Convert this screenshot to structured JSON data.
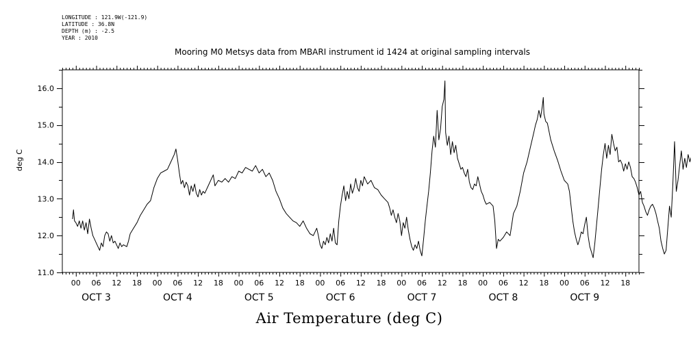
{
  "meta": {
    "longitude": "LONGITUDE : 121.9W(-121.9)",
    "latitude": "LATITUDE : 36.8N",
    "depth": "DEPTH (m) : -2.5",
    "year": "YEAR : 2010"
  },
  "chart_data": {
    "type": "line",
    "title": "Mooring M0 Metsys data from MBARI instrument id 1424 at original sampling intervals",
    "xlabel": "Air Temperature (deg C)",
    "ylabel": "deg C",
    "ylim": [
      11.0,
      16.5
    ],
    "yticks": [
      "11.0",
      "12.0",
      "13.0",
      "14.0",
      "15.0",
      "16.0"
    ],
    "xlim_hours": [
      -4,
      166
    ],
    "hour_tick_labels": [
      "00",
      "06",
      "12",
      "18",
      "00",
      "06",
      "12",
      "18",
      "00",
      "06",
      "12",
      "18",
      "00",
      "06",
      "12",
      "18",
      "00",
      "06",
      "12",
      "18",
      "00",
      "06",
      "12",
      "18",
      "00",
      "06",
      "12",
      "18"
    ],
    "day_labels": [
      "OCT 3",
      "OCT 4",
      "OCT 5",
      "OCT 6",
      "OCT 7",
      "OCT 8",
      "OCT 9"
    ],
    "grid": false,
    "series": [
      {
        "color": "#000000",
        "points": [
          [
            -1.0,
            12.45
          ],
          [
            -0.7,
            12.7
          ],
          [
            -0.4,
            12.4
          ],
          [
            0.0,
            12.35
          ],
          [
            0.5,
            12.25
          ],
          [
            1.0,
            12.4
          ],
          [
            1.5,
            12.2
          ],
          [
            2.0,
            12.4
          ],
          [
            2.5,
            12.15
          ],
          [
            3.0,
            12.35
          ],
          [
            3.5,
            12.05
          ],
          [
            4.0,
            12.45
          ],
          [
            4.5,
            12.2
          ],
          [
            5.0,
            12.0
          ],
          [
            5.5,
            11.9
          ],
          [
            6.0,
            11.8
          ],
          [
            6.5,
            11.7
          ],
          [
            7.0,
            11.6
          ],
          [
            7.5,
            11.8
          ],
          [
            8.0,
            11.7
          ],
          [
            8.5,
            12.0
          ],
          [
            9.0,
            12.1
          ],
          [
            9.5,
            12.05
          ],
          [
            10.0,
            11.85
          ],
          [
            10.5,
            12.0
          ],
          [
            11.0,
            11.8
          ],
          [
            11.5,
            11.85
          ],
          [
            12.0,
            11.75
          ],
          [
            12.5,
            11.65
          ],
          [
            13.0,
            11.8
          ],
          [
            13.5,
            11.7
          ],
          [
            14.0,
            11.75
          ],
          [
            15.0,
            11.7
          ],
          [
            15.5,
            11.85
          ],
          [
            16.0,
            12.05
          ],
          [
            17.0,
            12.2
          ],
          [
            18.0,
            12.35
          ],
          [
            19.0,
            12.55
          ],
          [
            20.0,
            12.7
          ],
          [
            21.0,
            12.85
          ],
          [
            22.0,
            12.95
          ],
          [
            23.0,
            13.3
          ],
          [
            24.0,
            13.55
          ],
          [
            25.0,
            13.7
          ],
          [
            26.0,
            13.75
          ],
          [
            27.0,
            13.8
          ],
          [
            28.0,
            14.0
          ],
          [
            29.0,
            14.2
          ],
          [
            29.5,
            14.35
          ],
          [
            30.0,
            14.05
          ],
          [
            30.5,
            13.7
          ],
          [
            31.0,
            13.4
          ],
          [
            31.5,
            13.5
          ],
          [
            32.0,
            13.3
          ],
          [
            32.5,
            13.45
          ],
          [
            33.0,
            13.35
          ],
          [
            33.5,
            13.1
          ],
          [
            34.0,
            13.35
          ],
          [
            34.5,
            13.2
          ],
          [
            35.0,
            13.4
          ],
          [
            35.5,
            13.15
          ],
          [
            36.0,
            13.05
          ],
          [
            36.5,
            13.25
          ],
          [
            37.0,
            13.1
          ],
          [
            37.5,
            13.2
          ],
          [
            38.0,
            13.15
          ],
          [
            39.0,
            13.35
          ],
          [
            40.0,
            13.55
          ],
          [
            40.5,
            13.65
          ],
          [
            41.0,
            13.35
          ],
          [
            42.0,
            13.5
          ],
          [
            43.0,
            13.45
          ],
          [
            44.0,
            13.55
          ],
          [
            45.0,
            13.45
          ],
          [
            46.0,
            13.6
          ],
          [
            47.0,
            13.55
          ],
          [
            48.0,
            13.75
          ],
          [
            49.0,
            13.7
          ],
          [
            50.0,
            13.85
          ],
          [
            51.0,
            13.8
          ],
          [
            52.0,
            13.75
          ],
          [
            53.0,
            13.9
          ],
          [
            54.0,
            13.7
          ],
          [
            55.0,
            13.8
          ],
          [
            56.0,
            13.6
          ],
          [
            57.0,
            13.7
          ],
          [
            58.0,
            13.5
          ],
          [
            59.0,
            13.2
          ],
          [
            60.0,
            13.0
          ],
          [
            61.0,
            12.75
          ],
          [
            62.0,
            12.6
          ],
          [
            63.0,
            12.5
          ],
          [
            64.0,
            12.4
          ],
          [
            65.0,
            12.35
          ],
          [
            66.0,
            12.25
          ],
          [
            67.0,
            12.4
          ],
          [
            68.0,
            12.2
          ],
          [
            69.0,
            12.05
          ],
          [
            70.0,
            12.0
          ],
          [
            71.0,
            12.2
          ],
          [
            71.5,
            12.0
          ],
          [
            72.0,
            11.75
          ],
          [
            72.5,
            11.65
          ],
          [
            73.0,
            11.85
          ],
          [
            73.5,
            11.75
          ],
          [
            74.0,
            11.95
          ],
          [
            74.5,
            11.8
          ],
          [
            75.0,
            12.05
          ],
          [
            75.5,
            11.85
          ],
          [
            76.0,
            12.2
          ],
          [
            76.5,
            11.8
          ],
          [
            77.0,
            11.75
          ],
          [
            77.5,
            12.4
          ],
          [
            78.0,
            12.8
          ],
          [
            78.5,
            13.1
          ],
          [
            79.0,
            13.35
          ],
          [
            79.5,
            12.95
          ],
          [
            80.0,
            13.2
          ],
          [
            80.5,
            13.0
          ],
          [
            81.0,
            13.4
          ],
          [
            81.5,
            13.15
          ],
          [
            82.0,
            13.3
          ],
          [
            82.5,
            13.55
          ],
          [
            83.0,
            13.3
          ],
          [
            83.5,
            13.2
          ],
          [
            84.0,
            13.5
          ],
          [
            84.5,
            13.35
          ],
          [
            85.0,
            13.6
          ],
          [
            86.0,
            13.4
          ],
          [
            87.0,
            13.5
          ],
          [
            88.0,
            13.3
          ],
          [
            89.0,
            13.25
          ],
          [
            90.0,
            13.1
          ],
          [
            91.0,
            13.0
          ],
          [
            92.0,
            12.9
          ],
          [
            92.5,
            12.75
          ],
          [
            93.0,
            12.55
          ],
          [
            93.5,
            12.7
          ],
          [
            94.0,
            12.5
          ],
          [
            94.5,
            12.35
          ],
          [
            95.0,
            12.6
          ],
          [
            95.5,
            12.4
          ],
          [
            96.0,
            12.0
          ],
          [
            96.5,
            12.35
          ],
          [
            97.0,
            12.2
          ],
          [
            97.5,
            12.5
          ],
          [
            98.0,
            12.15
          ],
          [
            98.5,
            11.9
          ],
          [
            99.0,
            11.7
          ],
          [
            99.5,
            11.6
          ],
          [
            100.0,
            11.75
          ],
          [
            100.5,
            11.65
          ],
          [
            101.0,
            11.85
          ],
          [
            101.5,
            11.6
          ],
          [
            102.0,
            11.45
          ],
          [
            102.5,
            11.9
          ],
          [
            103.0,
            12.4
          ],
          [
            103.5,
            12.8
          ],
          [
            104.0,
            13.2
          ],
          [
            104.5,
            13.7
          ],
          [
            105.0,
            14.3
          ],
          [
            105.5,
            14.7
          ],
          [
            106.0,
            14.4
          ],
          [
            106.5,
            15.4
          ],
          [
            107.0,
            14.6
          ],
          [
            107.5,
            14.9
          ],
          [
            108.0,
            15.5
          ],
          [
            108.5,
            15.7
          ],
          [
            108.8,
            16.2
          ],
          [
            109.0,
            14.8
          ],
          [
            109.5,
            14.45
          ],
          [
            110.0,
            14.7
          ],
          [
            110.5,
            14.2
          ],
          [
            111.0,
            14.55
          ],
          [
            111.5,
            14.25
          ],
          [
            112.0,
            14.45
          ],
          [
            112.5,
            14.1
          ],
          [
            113.0,
            13.95
          ],
          [
            113.5,
            13.8
          ],
          [
            114.0,
            13.85
          ],
          [
            114.5,
            13.7
          ],
          [
            115.0,
            13.6
          ],
          [
            115.5,
            13.8
          ],
          [
            116.0,
            13.45
          ],
          [
            116.5,
            13.3
          ],
          [
            117.0,
            13.25
          ],
          [
            117.5,
            13.4
          ],
          [
            118.0,
            13.35
          ],
          [
            118.5,
            13.6
          ],
          [
            119.0,
            13.4
          ],
          [
            119.5,
            13.2
          ],
          [
            120.0,
            13.1
          ],
          [
            120.5,
            12.95
          ],
          [
            121.0,
            12.85
          ],
          [
            122.0,
            12.9
          ],
          [
            123.0,
            12.8
          ],
          [
            123.5,
            12.4
          ],
          [
            124.0,
            11.65
          ],
          [
            124.5,
            11.9
          ],
          [
            125.0,
            11.85
          ],
          [
            126.0,
            11.95
          ],
          [
            127.0,
            12.1
          ],
          [
            128.0,
            12.0
          ],
          [
            128.5,
            12.3
          ],
          [
            129.0,
            12.6
          ],
          [
            130.0,
            12.8
          ],
          [
            131.0,
            13.2
          ],
          [
            132.0,
            13.7
          ],
          [
            133.0,
            14.0
          ],
          [
            134.0,
            14.4
          ],
          [
            135.0,
            14.8
          ],
          [
            135.5,
            15.0
          ],
          [
            136.0,
            15.15
          ],
          [
            136.5,
            15.4
          ],
          [
            137.0,
            15.2
          ],
          [
            137.5,
            15.5
          ],
          [
            137.8,
            15.75
          ],
          [
            138.0,
            15.3
          ],
          [
            138.5,
            15.1
          ],
          [
            139.0,
            15.05
          ],
          [
            140.0,
            14.6
          ],
          [
            141.0,
            14.3
          ],
          [
            142.0,
            14.05
          ],
          [
            143.0,
            13.75
          ],
          [
            144.0,
            13.5
          ],
          [
            145.0,
            13.4
          ],
          [
            145.5,
            13.2
          ],
          [
            146.0,
            12.8
          ],
          [
            146.5,
            12.4
          ],
          [
            147.0,
            12.1
          ],
          [
            147.5,
            11.9
          ],
          [
            148.0,
            11.75
          ],
          [
            148.5,
            11.9
          ],
          [
            149.0,
            12.1
          ],
          [
            149.5,
            12.05
          ],
          [
            150.0,
            12.3
          ],
          [
            150.5,
            12.5
          ],
          [
            151.0,
            12.0
          ],
          [
            151.5,
            11.7
          ],
          [
            152.0,
            11.55
          ],
          [
            152.5,
            11.4
          ],
          [
            153.0,
            11.8
          ],
          [
            153.5,
            12.3
          ],
          [
            154.0,
            12.8
          ],
          [
            154.5,
            13.3
          ],
          [
            155.0,
            13.8
          ],
          [
            155.5,
            14.2
          ],
          [
            156.0,
            14.5
          ],
          [
            156.5,
            14.1
          ],
          [
            157.0,
            14.45
          ],
          [
            157.5,
            14.2
          ],
          [
            158.0,
            14.75
          ],
          [
            158.5,
            14.5
          ],
          [
            159.0,
            14.3
          ],
          [
            159.5,
            14.4
          ],
          [
            160.0,
            14.0
          ],
          [
            160.5,
            14.05
          ],
          [
            161.0,
            13.95
          ],
          [
            161.5,
            13.75
          ],
          [
            162.0,
            13.95
          ],
          [
            162.5,
            13.8
          ],
          [
            163.0,
            14.0
          ],
          [
            163.5,
            13.85
          ],
          [
            164.0,
            13.6
          ],
          [
            164.5,
            13.55
          ],
          [
            165.0,
            13.45
          ],
          [
            165.5,
            13.3
          ],
          [
            166.0,
            13.1
          ],
          [
            166.5,
            13.2
          ],
          [
            167.0,
            12.9
          ],
          [
            167.5,
            12.8
          ],
          [
            168.0,
            12.65
          ],
          [
            168.5,
            12.55
          ],
          [
            169.0,
            12.7
          ],
          [
            169.5,
            12.8
          ],
          [
            170.0,
            12.85
          ],
          [
            170.5,
            12.75
          ],
          [
            171.0,
            12.6
          ],
          [
            171.5,
            12.4
          ],
          [
            172.0,
            12.2
          ],
          [
            172.5,
            11.85
          ],
          [
            173.0,
            11.65
          ],
          [
            173.5,
            11.5
          ],
          [
            174.0,
            11.6
          ],
          [
            174.5,
            12.2
          ],
          [
            175.0,
            12.8
          ],
          [
            175.5,
            12.5
          ],
          [
            176.0,
            13.4
          ],
          [
            176.5,
            14.55
          ],
          [
            177.0,
            13.2
          ],
          [
            177.5,
            13.5
          ],
          [
            178.0,
            13.9
          ],
          [
            178.5,
            14.3
          ],
          [
            179.0,
            13.8
          ],
          [
            179.5,
            14.1
          ],
          [
            180.0,
            13.85
          ],
          [
            180.5,
            14.2
          ],
          [
            181.0,
            14.0
          ],
          [
            181.5,
            14.15
          ],
          [
            182.0,
            14.3
          ],
          [
            182.5,
            14.6
          ]
        ]
      }
    ]
  }
}
